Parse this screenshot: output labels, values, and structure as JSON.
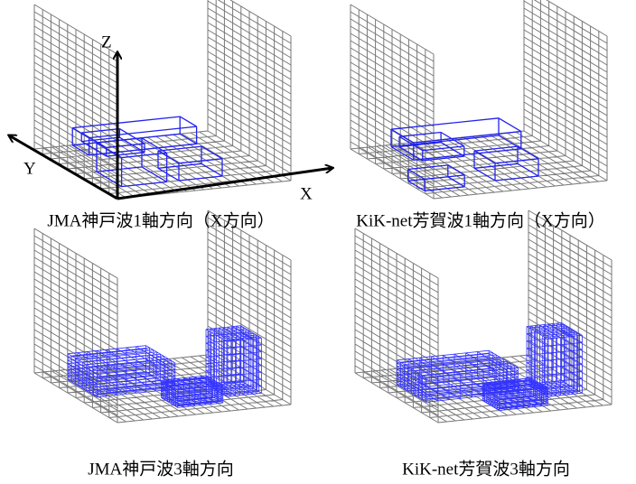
{
  "axes": {
    "z": "Z",
    "y": "Y",
    "x": "X"
  },
  "panels": [
    {
      "caption": "JMA神戸波1軸方向（X方向）"
    },
    {
      "caption": "KiK-net芳賀波1軸方向（X方向）"
    },
    {
      "caption": "JMA神戸波3軸方向"
    },
    {
      "caption": "KiK-net芳賀波3軸方向"
    }
  ]
}
